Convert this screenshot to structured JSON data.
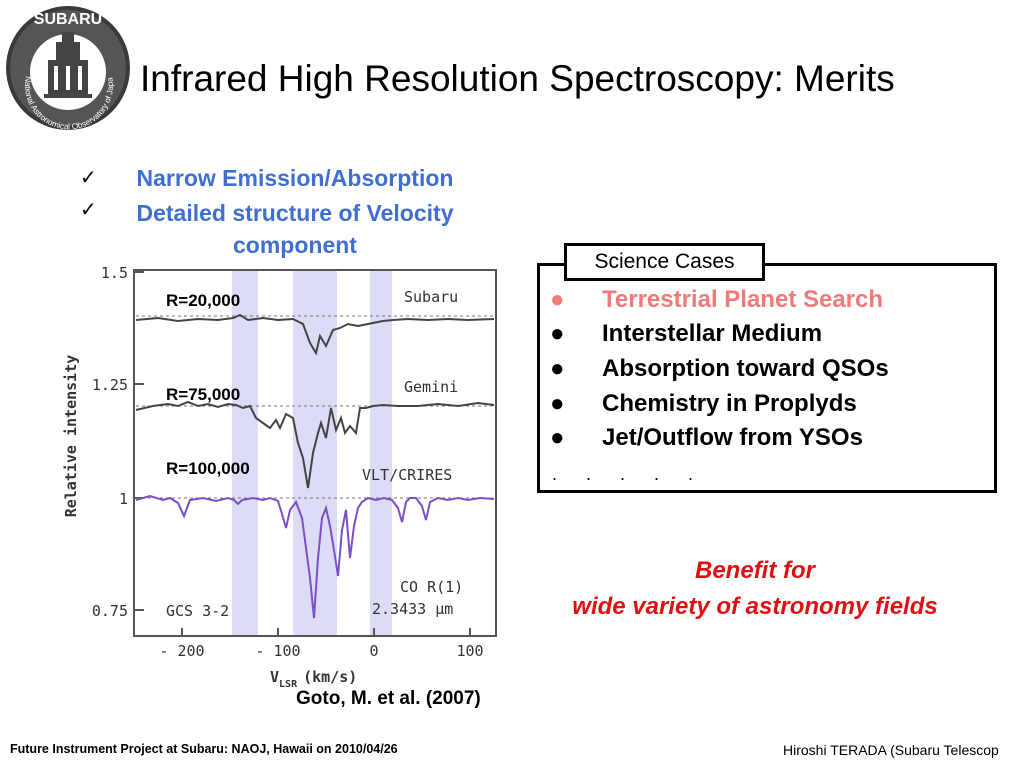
{
  "logo": {
    "top_text": "SUBARU",
    "ring_text": "National Astronomical Observatory of Japan"
  },
  "title": "Infrared High Resolution Spectroscopy: Merits",
  "merits": [
    {
      "check": "✓",
      "text": "Narrow Emission/Absorption"
    },
    {
      "check": "✓",
      "text": "Detailed structure of Velocity component"
    }
  ],
  "figure": {
    "ylabel": "Relative intensity",
    "yticks": [
      "1.5",
      "1.25",
      "1",
      "0.75"
    ],
    "xticks": [
      "- 200",
      "- 100",
      "0",
      "100"
    ],
    "xlabel_main": "V",
    "xlabel_sub": "LSR",
    "xlabel_unit": "(km/s)",
    "instruments": [
      "Subaru",
      "Gemini",
      "VLT/CRIRES"
    ],
    "resolutions": [
      "R=20,000",
      "R=75,000",
      "R=100,000"
    ],
    "source": "GCS 3-2",
    "line_name": "CO R(1)",
    "wavelength": "2.3433 μm",
    "colors": {
      "subaru": "#444444",
      "gemini": "#444444",
      "crires": "#7a4fc8",
      "band": "#dcdcf6"
    }
  },
  "citation": "Goto, M. et al. (2007)",
  "science": {
    "label": "Science Cases",
    "items": [
      {
        "bullet": "●",
        "text": "Terrestrial Planet Search",
        "color": "#f07a7a"
      },
      {
        "bullet": "●",
        "text": "Interstellar Medium",
        "color": "#000000"
      },
      {
        "bullet": "●",
        "text": "Absorption toward QSOs",
        "color": "#000000"
      },
      {
        "bullet": "●",
        "text": "Chemistry in Proplyds",
        "color": "#000000"
      },
      {
        "bullet": "●",
        "text": "Jet/Outflow from YSOs",
        "color": "#000000"
      }
    ],
    "more": ". . . . ."
  },
  "benefit": {
    "line1": "Benefit for",
    "line2": "wide variety of astronomy fields"
  },
  "footer": {
    "left": "Future Instrument Project at Subaru: NAOJ, Hawaii on 2010/04/26",
    "right": "Hiroshi TERADA (Subaru Telescop"
  }
}
